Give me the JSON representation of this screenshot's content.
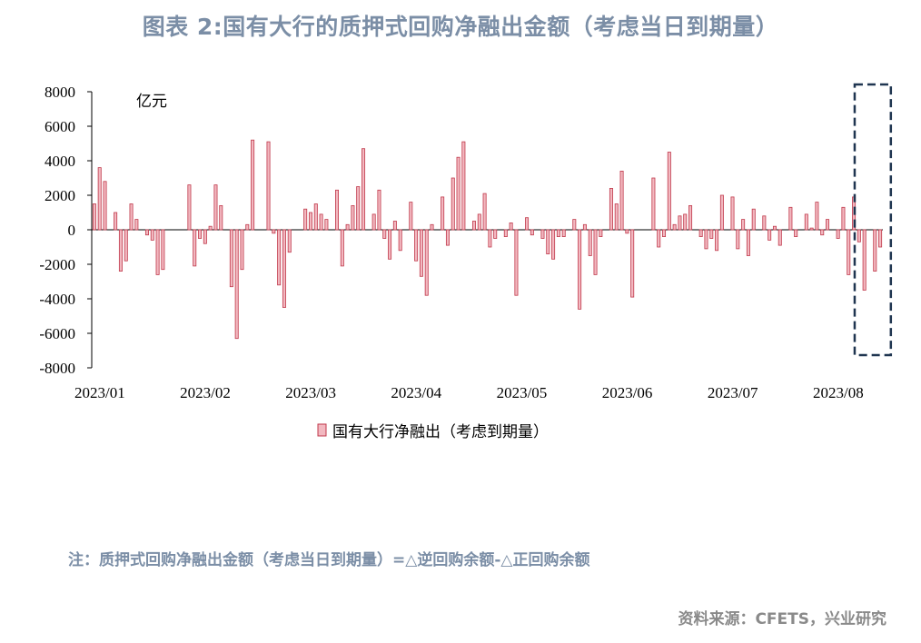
{
  "title": "图表 2:国有大行的质押式回购净融出金额（考虑当日到期量）",
  "note": "注：质押式回购净融出金额（考虑当日到期量）=△逆回购余额-△正回购余额",
  "source": "资料来源：CFETS，兴业研究",
  "colors": {
    "bar": "#c0394b",
    "bar_fill": "#f2b8c0",
    "highlight_box": "#1f3550",
    "axis": "#000000"
  },
  "chart_data": {
    "type": "bar",
    "unit_label": "亿元",
    "ylim": [
      -8000,
      8000
    ],
    "yticks": [
      8000,
      6000,
      4000,
      2000,
      0,
      -2000,
      -4000,
      -6000,
      -8000
    ],
    "xtick_labels": [
      "2023/01",
      "2023/02",
      "2023/03",
      "2023/04",
      "2023/05",
      "2023/06",
      "2023/07",
      "2023/08"
    ],
    "xtick_index": [
      0,
      20,
      40,
      60,
      80,
      100,
      120,
      140
    ],
    "legend": "国有大行净融出（考虑到期量）",
    "highlight_range": [
      145,
      150
    ],
    "values": [
      1500,
      3600,
      2800,
      0,
      1000,
      -2400,
      -1800,
      1500,
      600,
      0,
      -300,
      -600,
      -2600,
      -2300,
      0,
      0,
      0,
      0,
      2600,
      -2100,
      -500,
      -800,
      200,
      2600,
      1400,
      0,
      -3300,
      -6300,
      -2300,
      300,
      5200,
      0,
      0,
      5100,
      -200,
      -3200,
      -4500,
      -1300,
      0,
      0,
      1200,
      1000,
      1500,
      900,
      600,
      0,
      2300,
      -2100,
      300,
      1400,
      2500,
      4700,
      0,
      900,
      2300,
      -500,
      -1700,
      500,
      -1200,
      0,
      1600,
      -1800,
      -2700,
      -3800,
      300,
      0,
      1900,
      -900,
      3000,
      4200,
      5100,
      0,
      500,
      900,
      2100,
      -1000,
      -500,
      0,
      -400,
      400,
      -3800,
      0,
      700,
      -300,
      0,
      -500,
      -1400,
      -1700,
      -400,
      -400,
      0,
      600,
      -4600,
      300,
      -1500,
      -2600,
      -400,
      0,
      2400,
      1500,
      3400,
      -200,
      -3900,
      0,
      0,
      0,
      3000,
      -1000,
      -400,
      4500,
      300,
      800,
      900,
      1400,
      0,
      -400,
      -1100,
      -500,
      -1200,
      2000,
      0,
      1900,
      -1100,
      600,
      -1500,
      1200,
      0,
      800,
      -600,
      200,
      -900,
      0,
      1300,
      -400,
      0,
      900,
      100,
      1600,
      -300,
      600,
      0,
      -500,
      1300,
      -2600,
      1900,
      -700,
      -3500,
      0,
      -2400,
      -1000
    ]
  }
}
